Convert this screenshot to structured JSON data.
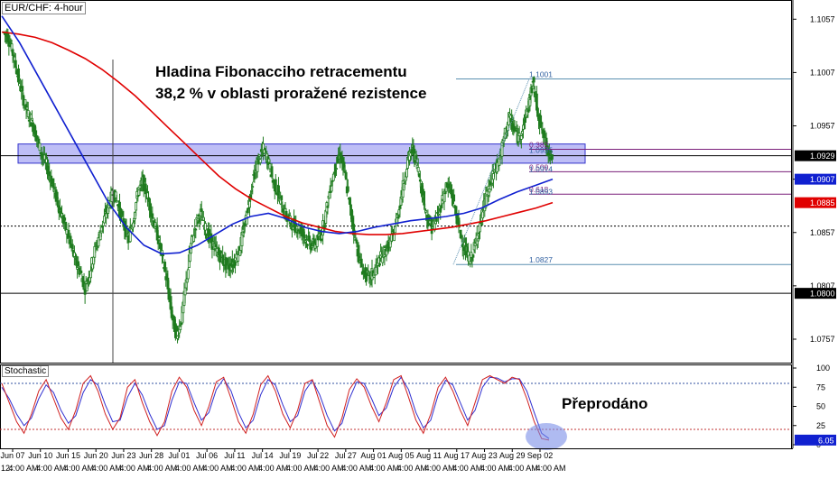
{
  "header": {
    "symbol": "EUR/CHF: 4-hour"
  },
  "annotations": {
    "main_line1": "Hladina Fibonacciho retracementu",
    "main_line2": "38,2 % v oblasti proražené rezistence",
    "oversold": "Přeprodáno"
  },
  "colors": {
    "candle": "#1e7b1e",
    "ma_slow": "#e00000",
    "ma_fast": "#1020d0",
    "fib": "#7a1f7a",
    "highlight": "#8888ee",
    "stoch_k": "#d02020",
    "stoch_d": "#3030d0",
    "price_tag_current": "#000000",
    "price_tag_blue": "#1020d0",
    "price_tag_red": "#e00000"
  },
  "chart_data": {
    "type": "candlestick",
    "title": "EUR/CHF: 4-hour",
    "ylim": [
      1.0735,
      1.1075
    ],
    "y_ticks": [
      "1.1057",
      "1.1007",
      "1.0957",
      "1.0907",
      "1.0857",
      "1.0807",
      "1.0757"
    ],
    "x_ticks": [
      "Jun 07",
      "Jun 10",
      "Jun 15",
      "Jun 20",
      "Jun 23",
      "Jun 28",
      "Jul 01",
      "Jul 06",
      "Jul 11",
      "Jul 14",
      "Jul 19",
      "Jul 22",
      "Jul 27",
      "Aug 01",
      "Aug 05",
      "Aug 11",
      "Aug 17",
      "Aug 23",
      "Aug 29",
      "Sep 02"
    ],
    "x_tick_sub": "4:00 AM",
    "x_prefix": "12:",
    "price_labels": [
      {
        "value": 1.0929,
        "text": "1.0929",
        "style": "current"
      },
      {
        "value": 1.0907,
        "text": "1.0907",
        "style": "blue"
      },
      {
        "value": 1.0885,
        "text": "1.0885",
        "style": "red"
      },
      {
        "value": 1.08,
        "text": "1.0800",
        "style": "current"
      }
    ],
    "horizontal_lines": [
      {
        "value": 1.1001,
        "style": "solid-blue"
      },
      {
        "value": 1.0929,
        "style": "solid-black"
      },
      {
        "value": 1.0863,
        "style": "dashed"
      },
      {
        "value": 1.0827,
        "style": "solid-blue"
      },
      {
        "value": 1.08,
        "style": "solid-black"
      }
    ],
    "fib_levels": [
      {
        "value": 1.1001,
        "label": "1.1001",
        "color": "blue"
      },
      {
        "value": 1.0935,
        "label": "0.382",
        "color": "fib"
      },
      {
        "value": 1.093,
        "label": "1.0935",
        "color": "blue"
      },
      {
        "value": 1.0914,
        "label": "0.500",
        "color": "fib"
      },
      {
        "value": 1.0912,
        "label": "1.0914",
        "color": "blue"
      },
      {
        "value": 1.0893,
        "label": "0.618",
        "color": "fib"
      },
      {
        "value": 1.0891,
        "label": "1.0893",
        "color": "blue"
      },
      {
        "value": 1.0827,
        "label": "1.0827",
        "color": "blue"
      }
    ],
    "resistance_zone": [
      1.0922,
      1.094
    ],
    "close_series": [
      1.1045,
      1.104,
      1.1025,
      1.1005,
      1.0985,
      1.097,
      1.096,
      1.0945,
      1.093,
      1.092,
      1.0905,
      1.089,
      1.0875,
      1.086,
      1.0845,
      1.083,
      1.082,
      1.0805,
      1.082,
      1.084,
      1.0855,
      1.087,
      1.0885,
      1.0895,
      1.088,
      1.0865,
      1.085,
      1.087,
      1.0895,
      1.0905,
      1.089,
      1.087,
      1.0855,
      1.0835,
      1.081,
      1.078,
      1.076,
      1.0775,
      1.081,
      1.0845,
      1.0865,
      1.0875,
      1.086,
      1.085,
      1.0842,
      1.0835,
      1.0828,
      1.0825,
      1.083,
      1.084,
      1.086,
      1.0885,
      1.091,
      1.0925,
      1.0935,
      1.0925,
      1.0905,
      1.0895,
      1.088,
      1.087,
      1.0865,
      1.0862,
      1.0858,
      1.085,
      1.0845,
      1.0848,
      1.0855,
      1.0875,
      1.09,
      1.092,
      1.093,
      1.091,
      1.088,
      1.0855,
      1.083,
      1.0818,
      1.0815,
      1.082,
      1.083,
      1.0838,
      1.0845,
      1.0855,
      1.0875,
      1.09,
      1.0925,
      1.0935,
      1.092,
      1.0895,
      1.087,
      1.0862,
      1.087,
      1.0885,
      1.09,
      1.0895,
      1.0875,
      1.0855,
      1.084,
      1.083,
      1.0845,
      1.0865,
      1.0885,
      1.09,
      1.0915,
      1.0925,
      1.0945,
      1.0965,
      1.0955,
      1.0945,
      1.0958,
      1.0975,
      1.0998,
      1.097,
      1.095,
      1.0935,
      1.0929
    ],
    "ma_slow": [
      1.1045,
      1.1043,
      1.104,
      1.1035,
      1.1028,
      1.102,
      1.101,
      1.0998,
      1.0985,
      1.097,
      1.0955,
      1.094,
      1.0925,
      1.091,
      1.0898,
      1.0888,
      1.088,
      1.0872,
      1.0866,
      1.0862,
      1.0858,
      1.0856,
      1.0855,
      1.0855,
      1.0856,
      1.0858,
      1.086,
      1.0862,
      1.0865,
      1.0868,
      1.0872,
      1.0876,
      1.088,
      1.0885
    ],
    "ma_fast": [
      1.106,
      1.1035,
      1.1005,
      1.0975,
      1.0945,
      1.0915,
      1.0885,
      1.0862,
      1.0845,
      1.0837,
      1.0838,
      1.0845,
      1.0855,
      1.0865,
      1.0872,
      1.0875,
      1.087,
      1.0862,
      1.0858,
      1.0856,
      1.0858,
      1.0862,
      1.0865,
      1.0868,
      1.087,
      1.0872,
      1.0875,
      1.088,
      1.0888,
      1.0895,
      1.0901,
      1.0907
    ],
    "stochastic": {
      "title": "Stochastic",
      "ylim": [
        0,
        100
      ],
      "y_ticks": [
        "100",
        "75",
        "50",
        "25",
        "0"
      ],
      "levels": [
        80,
        20
      ],
      "current_value": "6.05",
      "k": [
        80,
        55,
        30,
        15,
        40,
        70,
        85,
        60,
        35,
        20,
        45,
        80,
        90,
        70,
        40,
        20,
        35,
        75,
        85,
        55,
        30,
        12,
        30,
        70,
        88,
        75,
        45,
        25,
        50,
        82,
        88,
        60,
        30,
        15,
        40,
        78,
        90,
        70,
        40,
        22,
        45,
        80,
        85,
        55,
        25,
        10,
        35,
        72,
        86,
        75,
        50,
        30,
        55,
        85,
        90,
        62,
        32,
        15,
        40,
        75,
        88,
        70,
        45,
        25,
        55,
        85,
        90,
        85,
        80,
        88,
        85,
        60,
        30,
        8,
        6
      ],
      "d": [
        75,
        60,
        40,
        25,
        35,
        60,
        78,
        68,
        45,
        28,
        38,
        68,
        85,
        78,
        52,
        30,
        32,
        62,
        80,
        65,
        40,
        20,
        25,
        58,
        82,
        80,
        55,
        32,
        42,
        72,
        86,
        70,
        42,
        22,
        32,
        65,
        85,
        78,
        52,
        30,
        38,
        70,
        84,
        65,
        38,
        18,
        28,
        60,
        82,
        80,
        60,
        38,
        48,
        75,
        88,
        72,
        42,
        22,
        32,
        65,
        84,
        78,
        55,
        32,
        45,
        75,
        88,
        87,
        82,
        86,
        86,
        70,
        42,
        15,
        8
      ]
    }
  }
}
